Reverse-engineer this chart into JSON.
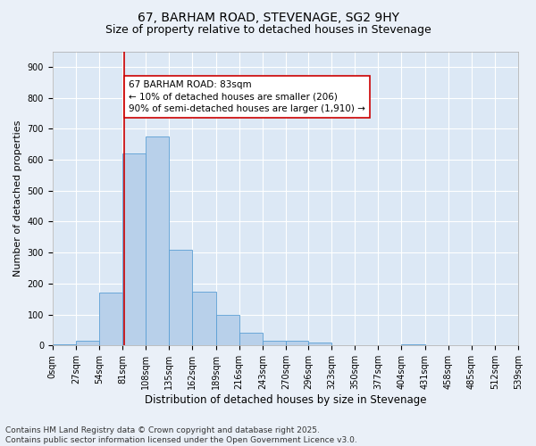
{
  "title1": "67, BARHAM ROAD, STEVENAGE, SG2 9HY",
  "title2": "Size of property relative to detached houses in Stevenage",
  "xlabel": "Distribution of detached houses by size in Stevenage",
  "ylabel": "Number of detached properties",
  "bar_edges": [
    0,
    27,
    54,
    81,
    108,
    135,
    162,
    189,
    216,
    243,
    270,
    296,
    323,
    350,
    377,
    404,
    431,
    458,
    485,
    512,
    539
  ],
  "bar_heights": [
    5,
    15,
    170,
    620,
    675,
    310,
    175,
    100,
    40,
    15,
    15,
    10,
    0,
    0,
    0,
    5,
    0,
    0,
    0,
    0
  ],
  "bar_color": "#b8d0ea",
  "bar_edgecolor": "#5a9fd4",
  "property_line_x": 83,
  "property_line_color": "#cc0000",
  "annotation_text": "67 BARHAM ROAD: 83sqm\n← 10% of detached houses are smaller (206)\n90% of semi-detached houses are larger (1,910) →",
  "annotation_box_edgecolor": "#cc0000",
  "annotation_box_facecolor": "#ffffff",
  "ylim": [
    0,
    950
  ],
  "yticks": [
    0,
    100,
    200,
    300,
    400,
    500,
    600,
    700,
    800,
    900
  ],
  "tick_labels": [
    "0sqm",
    "27sqm",
    "54sqm",
    "81sqm",
    "108sqm",
    "135sqm",
    "162sqm",
    "189sqm",
    "216sqm",
    "243sqm",
    "270sqm",
    "296sqm",
    "323sqm",
    "350sqm",
    "377sqm",
    "404sqm",
    "431sqm",
    "458sqm",
    "485sqm",
    "512sqm",
    "539sqm"
  ],
  "background_color": "#dce8f5",
  "fig_background_color": "#eaf0f8",
  "grid_color": "#ffffff",
  "footer_text": "Contains HM Land Registry data © Crown copyright and database right 2025.\nContains public sector information licensed under the Open Government Licence v3.0.",
  "title1_fontsize": 10,
  "title2_fontsize": 9,
  "xlabel_fontsize": 8.5,
  "ylabel_fontsize": 8,
  "tick_fontsize": 7,
  "annotation_fontsize": 7.5,
  "footer_fontsize": 6.5
}
